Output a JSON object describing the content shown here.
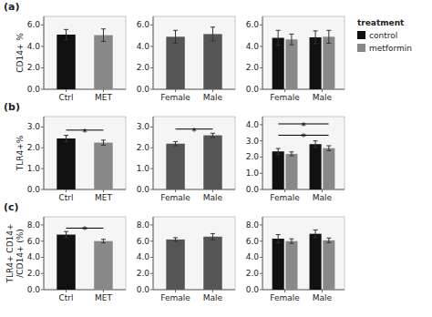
{
  "chart_data": [
    {
      "type": "bar",
      "title": "(a)",
      "ylabel": "CD14+ %",
      "categories": [
        "Ctrl",
        "MET"
      ],
      "values": [
        5.1,
        5.05
      ],
      "errors": [
        0.48,
        0.58
      ],
      "colors": [
        "#111111",
        "#888888"
      ],
      "ylim": [
        0,
        6.8
      ],
      "yticks": [
        {
          "value": 0,
          "label": "0.0"
        },
        {
          "value": 2,
          "label": "2.0"
        },
        {
          "value": 4,
          "label": "4.0"
        },
        {
          "value": 6,
          "label": "6.0"
        }
      ]
    },
    {
      "type": "bar",
      "categories": [
        "Female",
        "Male"
      ],
      "values": [
        4.9,
        5.15
      ],
      "errors": [
        0.6,
        0.65
      ],
      "colors": [
        "#555555",
        "#555555"
      ],
      "ylim": [
        0,
        6.8
      ],
      "yticks": [
        {
          "value": 0,
          "label": "0.0"
        },
        {
          "value": 2,
          "label": "2.0"
        },
        {
          "value": 4,
          "label": "4.0"
        },
        {
          "value": 6,
          "label": "6.0"
        }
      ]
    },
    {
      "type": "bar",
      "categories": [
        "Female",
        "Male"
      ],
      "series": [
        {
          "name": "control",
          "color": "#111111",
          "values": [
            4.8,
            4.85
          ],
          "errors": [
            0.7,
            0.6
          ]
        },
        {
          "name": "metformin",
          "color": "#888888",
          "values": [
            4.65,
            4.9
          ],
          "errors": [
            0.5,
            0.6
          ]
        }
      ],
      "ylim": [
        0,
        6.8
      ],
      "yticks": [
        {
          "value": 0,
          "label": "0.0"
        },
        {
          "value": 2,
          "label": "2.0"
        },
        {
          "value": 4,
          "label": "4.0"
        },
        {
          "value": 6,
          "label": "6.0"
        }
      ],
      "legend": "upper right",
      "legend_title": "treatment"
    },
    {
      "type": "bar",
      "title": "(b)",
      "ylabel": "TLR4+%",
      "categories": [
        "Ctrl",
        "MET"
      ],
      "values": [
        2.45,
        2.25
      ],
      "errors": [
        0.15,
        0.12
      ],
      "colors": [
        "#111111",
        "#888888"
      ],
      "ylim": [
        0,
        3.5
      ],
      "yticks": [
        {
          "value": 0,
          "label": "0.0"
        },
        {
          "value": 1,
          "label": "1.0"
        },
        {
          "value": 2,
          "label": "2.0"
        },
        {
          "value": 3,
          "label": "3.0"
        }
      ],
      "annotations": [
        {
          "text": "*",
          "x": [
            0,
            1
          ],
          "y": 2.85
        }
      ]
    },
    {
      "type": "bar",
      "categories": [
        "Female",
        "Male"
      ],
      "values": [
        2.2,
        2.6
      ],
      "errors": [
        0.1,
        0.1
      ],
      "colors": [
        "#555555",
        "#555555"
      ],
      "ylim": [
        0,
        3.5
      ],
      "yticks": [
        {
          "value": 0,
          "label": "0.0"
        },
        {
          "value": 1,
          "label": "1.0"
        },
        {
          "value": 2,
          "label": "2.0"
        },
        {
          "value": 3,
          "label": "3.0"
        }
      ],
      "annotations": [
        {
          "text": "*",
          "x": [
            0,
            1
          ],
          "y": 2.9
        }
      ]
    },
    {
      "type": "bar",
      "categories": [
        "Female",
        "Male"
      ],
      "series": [
        {
          "name": "control",
          "color": "#111111",
          "values": [
            2.35,
            2.8
          ],
          "errors": [
            0.18,
            0.2
          ]
        },
        {
          "name": "metformin",
          "color": "#888888",
          "values": [
            2.2,
            2.55
          ],
          "errors": [
            0.12,
            0.15
          ]
        }
      ],
      "ylim": [
        0,
        4.5
      ],
      "yticks": [
        {
          "value": 0,
          "label": "0.0"
        },
        {
          "value": 1,
          "label": "1.0"
        },
        {
          "value": 2,
          "label": "2.0"
        },
        {
          "value": 3,
          "label": "3.0"
        },
        {
          "value": 4,
          "label": "4.0"
        }
      ],
      "annotations": [
        {
          "text": "*",
          "x": [
            -0.175,
            1.175
          ],
          "y": 4.05
        },
        {
          "text": "*",
          "x": [
            -0.175,
            1.175
          ],
          "y": 3.35
        }
      ]
    },
    {
      "type": "bar",
      "title": "(c)",
      "ylabel": "TLR4+ CD14+\n/CD14+ (%)",
      "categories": [
        "Ctrl",
        "MET"
      ],
      "values": [
        6.8,
        6.0
      ],
      "errors": [
        0.38,
        0.22
      ],
      "colors": [
        "#111111",
        "#888888"
      ],
      "ylim": [
        0,
        9
      ],
      "yticks": [
        {
          "value": 0,
          "label": "0.0"
        },
        {
          "value": 2,
          "label": "2.0"
        },
        {
          "value": 4,
          "label": "4.0"
        },
        {
          "value": 6,
          "label": "6.0"
        },
        {
          "value": 8,
          "label": "8.0"
        }
      ],
      "annotations": [
        {
          "text": "*",
          "x": [
            0,
            1
          ],
          "y": 7.6
        }
      ]
    },
    {
      "type": "bar",
      "categories": [
        "Female",
        "Male"
      ],
      "values": [
        6.2,
        6.55
      ],
      "errors": [
        0.22,
        0.38
      ],
      "colors": [
        "#555555",
        "#555555"
      ],
      "ylim": [
        0,
        9
      ],
      "yticks": [
        {
          "value": 0,
          "label": "0.0"
        },
        {
          "value": 2,
          "label": "2.0"
        },
        {
          "value": 4,
          "label": "4.0"
        },
        {
          "value": 6,
          "label": "6.0"
        },
        {
          "value": 8,
          "label": "8.0"
        }
      ]
    },
    {
      "type": "bar",
      "categories": [
        "Female",
        "Male"
      ],
      "series": [
        {
          "name": "control",
          "color": "#111111",
          "values": [
            6.3,
            6.9
          ],
          "errors": [
            0.5,
            0.48
          ]
        },
        {
          "name": "metformin",
          "color": "#888888",
          "values": [
            6.0,
            6.1
          ],
          "errors": [
            0.28,
            0.28
          ]
        }
      ],
      "ylim": [
        0,
        9
      ],
      "yticks": [
        {
          "value": 0,
          "label": "0.0"
        },
        {
          "value": 2,
          "label": "2.0"
        },
        {
          "value": 4,
          "label": "4.0"
        },
        {
          "value": 6,
          "label": "6.0"
        },
        {
          "value": 8,
          "label": "8.0"
        }
      ]
    }
  ]
}
